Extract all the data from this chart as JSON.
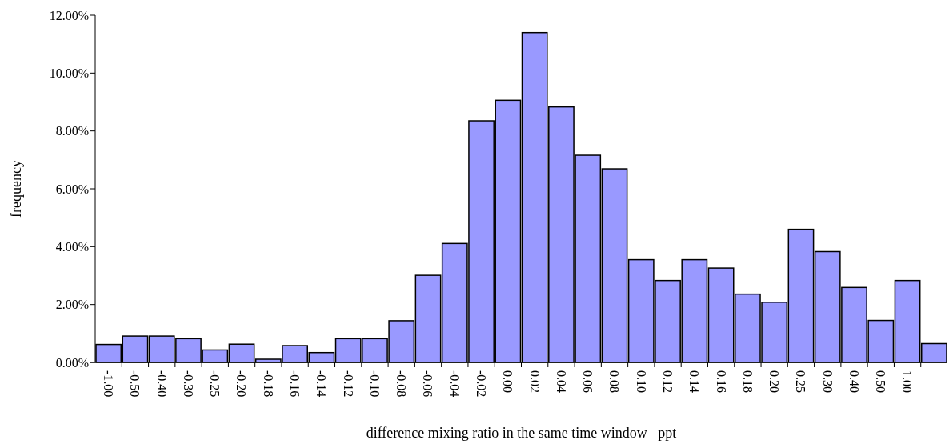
{
  "chart_data": {
    "type": "bar",
    "xlabel": "difference mixing ratio in the same time window   ppt",
    "ylabel": "frequency",
    "categories": [
      "-1.00",
      "-0.50",
      "-0.40",
      "-0.30",
      "-0.25",
      "-0.20",
      "-0.18",
      "-0.16",
      "-0.14",
      "-0.12",
      "-0.10",
      "-0.08",
      "-0.06",
      "-0.04",
      "-0.02",
      "0.00",
      "0.02",
      "0.04",
      "0.06",
      "0.08",
      "0.10",
      "0.12",
      "0.14",
      "0.16",
      "0.18",
      "0.20",
      "0.25",
      "0.30",
      "0.40",
      "0.50",
      "1.00",
      null
    ],
    "values": [
      0.62,
      0.91,
      0.91,
      0.82,
      0.43,
      0.63,
      0.11,
      0.58,
      0.34,
      0.82,
      0.82,
      1.44,
      3.01,
      4.11,
      8.35,
      9.06,
      11.4,
      8.83,
      7.16,
      6.69,
      3.55,
      2.83,
      3.55,
      3.26,
      2.36,
      2.08,
      4.6,
      3.83,
      2.59,
      1.45,
      2.83,
      0.65
    ],
    "color": "#9999ff",
    "ylim": [
      0,
      12
    ],
    "yticks": [
      {
        "value": 0,
        "label": "0.00%"
      },
      {
        "value": 2,
        "label": "2.00%"
      },
      {
        "value": 4,
        "label": "4.00%"
      },
      {
        "value": 6,
        "label": "6.00%"
      },
      {
        "value": 8,
        "label": "8.00%"
      },
      {
        "value": 10,
        "label": "10.00%"
      },
      {
        "value": 12,
        "label": "12.00%"
      }
    ],
    "grid": false
  }
}
